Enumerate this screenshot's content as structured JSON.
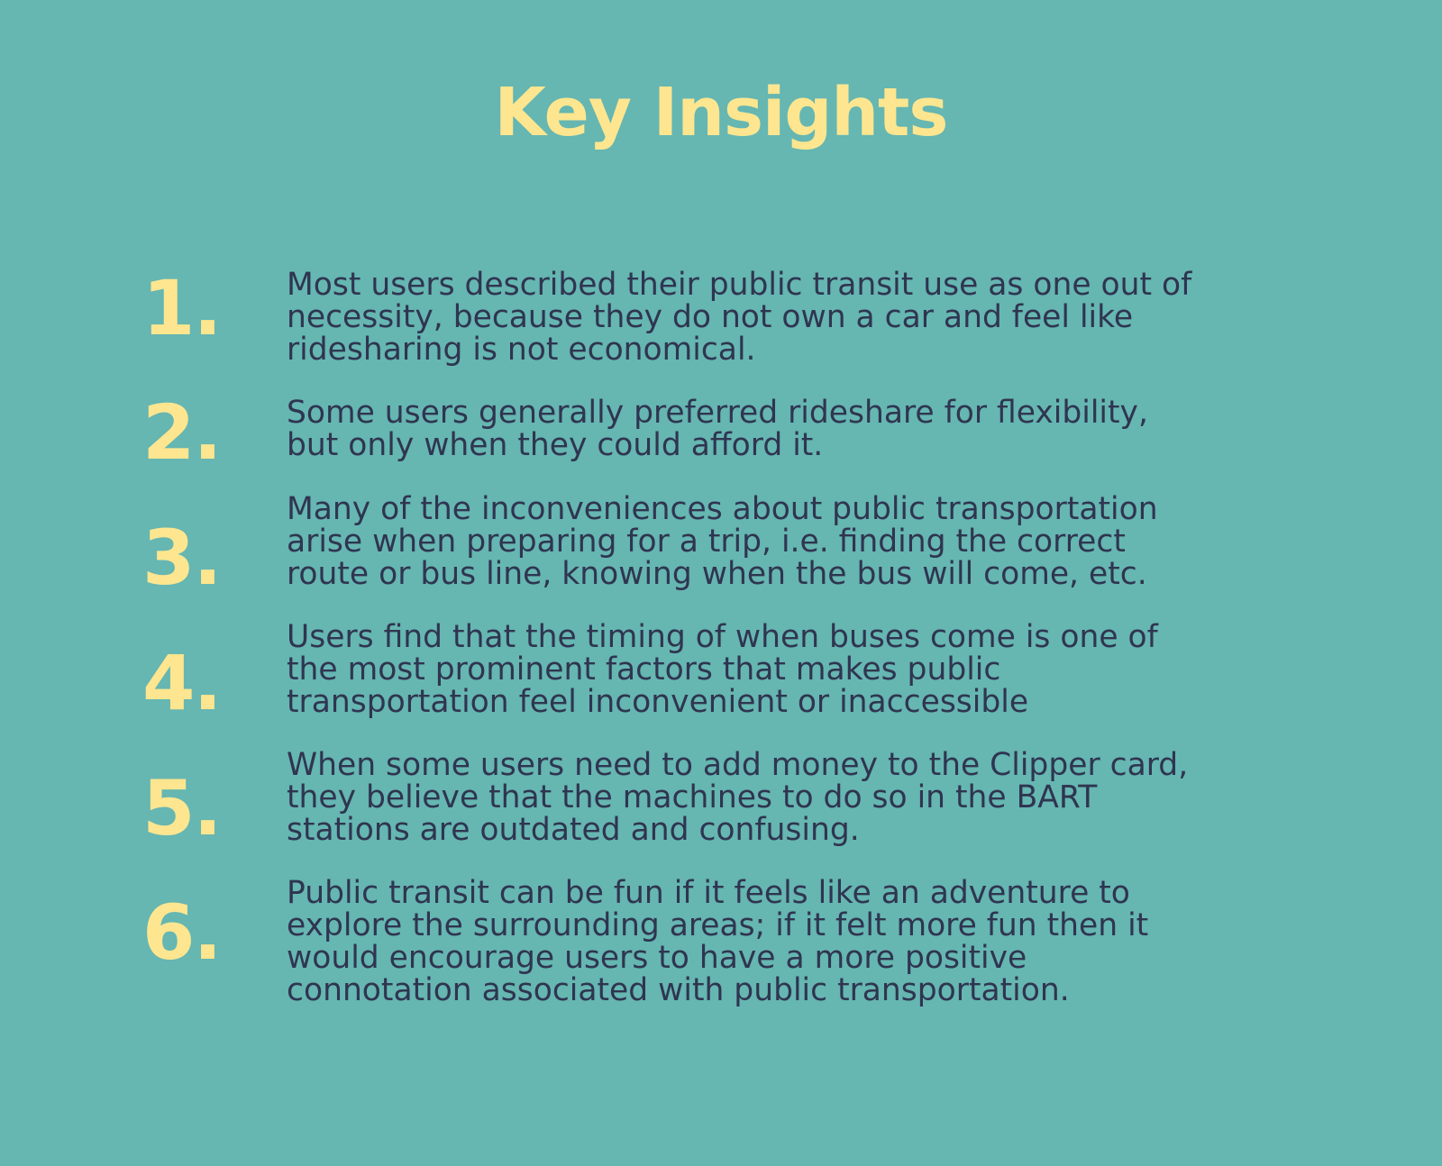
{
  "title": "Key Insights",
  "insights": [
    {
      "number": "1.",
      "text": "Most users described their public transit use as one out of\nnecessity, because they do not own a car and feel like\nridesharing is not economical."
    },
    {
      "number": "2.",
      "text": "Some users generally preferred rideshare for flexibility,\nbut only when they could afford it."
    },
    {
      "number": "3.",
      "text": "Many of the inconveniences about public transportation\narise when preparing for a trip, i.e. finding the correct\nroute or bus line, knowing when the bus will come, etc."
    },
    {
      "number": "4.",
      "text": "Users find that the timing of when buses come is one of\nthe most prominent factors that makes public\ntransportation feel inconvenient or inaccessible"
    },
    {
      "number": "5.",
      "text": "When some users need to add money to the Clipper card,\nthey believe that the machines to do so in the BART\nstations are outdated and confusing."
    },
    {
      "number": "6.",
      "text": "Public transit can be fun if it feels like an adventure to\nexplore the surrounding areas; if it felt more fun then it\nwould encourage users to have a more positive\nconnotation associated with public transportation."
    }
  ],
  "colors": {
    "background": "#66b6b2",
    "accent": "#fde68f",
    "body_text": "#2f3550"
  }
}
